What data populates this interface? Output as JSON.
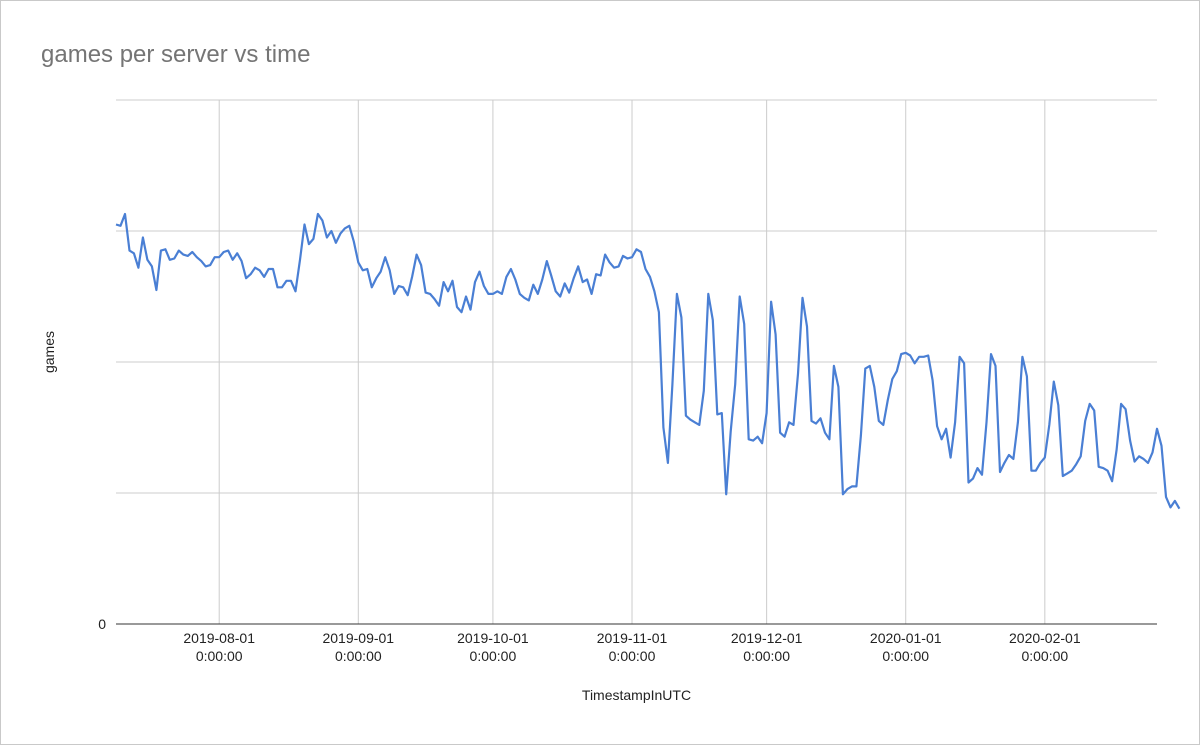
{
  "chart_data": {
    "type": "line",
    "title": "games per server vs time",
    "xlabel": "TimestampInUTC",
    "ylabel": "games",
    "x_range": [
      "2019-07-09",
      "2020-02-26"
    ],
    "ylim": [
      0,
      4
    ],
    "y_ticks": [
      {
        "value": 0,
        "label": "0"
      },
      {
        "value": 1,
        "label": ""
      },
      {
        "value": 2,
        "label": ""
      },
      {
        "value": 3,
        "label": ""
      },
      {
        "value": 4,
        "label": ""
      }
    ],
    "x_ticks": [
      {
        "date": "2019-08-01",
        "line1": "2019-08-01",
        "line2": "0:00:00"
      },
      {
        "date": "2019-09-01",
        "line1": "2019-09-01",
        "line2": "0:00:00"
      },
      {
        "date": "2019-10-01",
        "line1": "2019-10-01",
        "line2": "0:00:00"
      },
      {
        "date": "2019-11-01",
        "line1": "2019-11-01",
        "line2": "0:00:00"
      },
      {
        "date": "2019-12-01",
        "line1": "2019-12-01",
        "line2": "0:00:00"
      },
      {
        "date": "2020-01-01",
        "line1": "2020-01-01",
        "line2": "0:00:00"
      },
      {
        "date": "2020-02-01",
        "line1": "2020-02-01",
        "line2": "0:00:00"
      }
    ],
    "grid": true,
    "legend": "none",
    "series": [
      {
        "color": "#4a7fd4",
        "start_date": "2019-07-09",
        "step_days": 1,
        "values": [
          3.05,
          3.04,
          3.13,
          2.85,
          2.83,
          2.72,
          2.95,
          2.78,
          2.73,
          2.55,
          2.85,
          2.86,
          2.78,
          2.79,
          2.85,
          2.82,
          2.81,
          2.84,
          2.8,
          2.77,
          2.73,
          2.74,
          2.8,
          2.8,
          2.84,
          2.85,
          2.78,
          2.83,
          2.77,
          2.64,
          2.67,
          2.72,
          2.7,
          2.65,
          2.71,
          2.71,
          2.57,
          2.57,
          2.62,
          2.62,
          2.54,
          2.78,
          3.05,
          2.9,
          2.94,
          3.13,
          3.08,
          2.95,
          3.0,
          2.91,
          2.98,
          3.02,
          3.04,
          2.92,
          2.76,
          2.7,
          2.71,
          2.57,
          2.64,
          2.69,
          2.8,
          2.7,
          2.52,
          2.58,
          2.57,
          2.51,
          2.65,
          2.82,
          2.74,
          2.53,
          2.52,
          2.48,
          2.43,
          2.61,
          2.54,
          2.62,
          2.42,
          2.38,
          2.5,
          2.4,
          2.61,
          2.69,
          2.58,
          2.52,
          2.52,
          2.54,
          2.52,
          2.65,
          2.71,
          2.63,
          2.52,
          2.49,
          2.47,
          2.59,
          2.52,
          2.63,
          2.77,
          2.66,
          2.54,
          2.5,
          2.6,
          2.53,
          2.64,
          2.73,
          2.61,
          2.63,
          2.52,
          2.67,
          2.66,
          2.82,
          2.76,
          2.72,
          2.73,
          2.81,
          2.79,
          2.8,
          2.86,
          2.84,
          2.71,
          2.65,
          2.54,
          2.38,
          1.5,
          1.23,
          1.83,
          2.52,
          2.34,
          1.59,
          1.56,
          1.54,
          1.52,
          1.78,
          2.52,
          2.32,
          1.6,
          1.61,
          0.99,
          1.47,
          1.83,
          2.5,
          2.29,
          1.41,
          1.4,
          1.43,
          1.38,
          1.61,
          2.46,
          2.21,
          1.46,
          1.43,
          1.54,
          1.52,
          1.91,
          2.49,
          2.27,
          1.55,
          1.53,
          1.57,
          1.46,
          1.41,
          1.97,
          1.81,
          0.99,
          1.03,
          1.05,
          1.05,
          1.44,
          1.95,
          1.97,
          1.81,
          1.55,
          1.52,
          1.71,
          1.87,
          1.93,
          2.06,
          2.07,
          2.05,
          1.99,
          2.04,
          2.04,
          2.05,
          1.86,
          1.51,
          1.41,
          1.49,
          1.27,
          1.54,
          2.04,
          1.99,
          1.08,
          1.11,
          1.19,
          1.14,
          1.54,
          2.06,
          1.97,
          1.16,
          1.23,
          1.29,
          1.26,
          1.54,
          2.04,
          1.89,
          1.17,
          1.17,
          1.23,
          1.27,
          1.52,
          1.85,
          1.67,
          1.13,
          1.15,
          1.17,
          1.22,
          1.28,
          1.55,
          1.68,
          1.63,
          1.2,
          1.19,
          1.17,
          1.09,
          1.33,
          1.68,
          1.64,
          1.4,
          1.24,
          1.28,
          1.26,
          1.23,
          1.31,
          1.49,
          1.36,
          0.97,
          0.89,
          0.94,
          0.88
        ]
      }
    ]
  }
}
